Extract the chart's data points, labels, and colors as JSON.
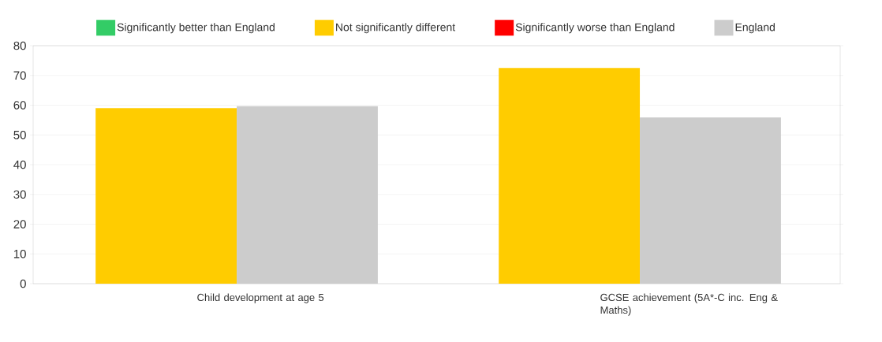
{
  "chart_data": {
    "type": "bar",
    "categories": [
      "Child development at age 5",
      "GCSE achievement (5A*-C inc. Eng & Maths)"
    ],
    "series": [
      {
        "name": "Significantly better than England",
        "color": "#33cc66",
        "values": [
          null,
          null
        ]
      },
      {
        "name": "Not significantly different",
        "color": "#ffcc00",
        "values": [
          59.0,
          72.5
        ]
      },
      {
        "name": "Significantly worse than England",
        "color": "#ff0000",
        "values": [
          null,
          null
        ]
      },
      {
        "name": "England",
        "color": "#cccccc",
        "values": [
          59.7,
          55.9
        ]
      }
    ],
    "ylim": [
      0,
      80
    ],
    "yticks": [
      0,
      10,
      20,
      30,
      40,
      50,
      60,
      70,
      80
    ],
    "grid": "y",
    "legend": "top"
  }
}
